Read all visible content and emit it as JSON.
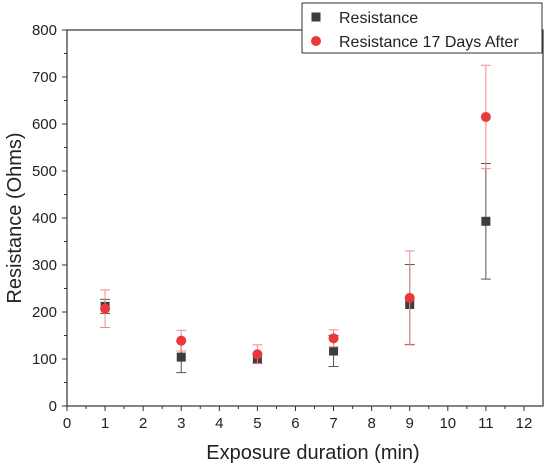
{
  "chart_data": {
    "type": "scatter",
    "xlabel": "Exposure duration (min)",
    "ylabel": "Resistance (Ohms)",
    "xlim": [
      0,
      12.5
    ],
    "ylim": [
      0,
      800
    ],
    "xticks": [
      0,
      1,
      2,
      3,
      4,
      5,
      6,
      7,
      8,
      9,
      10,
      11,
      12
    ],
    "yticks": [
      0,
      100,
      200,
      300,
      400,
      500,
      600,
      700,
      800
    ],
    "grid": false,
    "legend_position": "top-right",
    "series": [
      {
        "name": "Resistance",
        "marker": "square",
        "color": "#3d3d3d",
        "error_color": "#555555",
        "x": [
          1,
          3,
          5,
          7,
          9,
          11
        ],
        "y": [
          212,
          104,
          101,
          117,
          216,
          393
        ],
        "error": [
          15,
          33,
          10,
          33,
          85,
          123
        ]
      },
      {
        "name": "Resistance 17 Days After",
        "marker": "circle",
        "color": "#e8393c",
        "error_color": "#f08a8a",
        "x": [
          1,
          3,
          5,
          7,
          9,
          11
        ],
        "y": [
          207,
          139,
          110,
          144,
          230,
          615
        ],
        "error": [
          40,
          22,
          20,
          18,
          100,
          110
        ]
      }
    ]
  }
}
